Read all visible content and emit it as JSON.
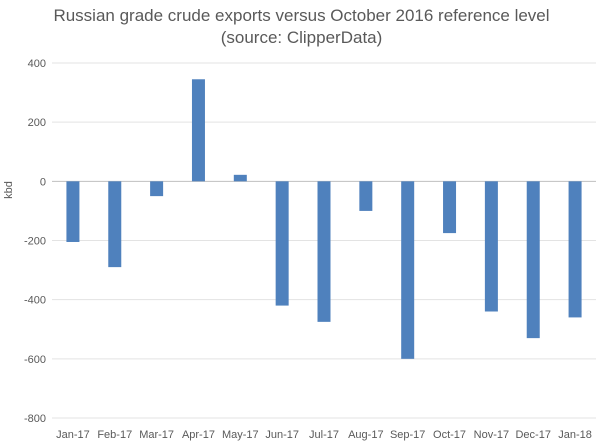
{
  "chart_data": {
    "type": "bar",
    "title": "Russian grade crude exports versus October 2016 reference level",
    "subtitle": "(source: ClipperData)",
    "xlabel": "",
    "ylabel": "kbd",
    "categories": [
      "Jan-17",
      "Feb-17",
      "Mar-17",
      "Apr-17",
      "May-17",
      "Jun-17",
      "Jul-17",
      "Aug-17",
      "Sep-17",
      "Oct-17",
      "Nov-17",
      "Dec-17",
      "Jan-18"
    ],
    "values": [
      -205,
      -290,
      -50,
      345,
      22,
      -420,
      -475,
      -100,
      -600,
      -175,
      -440,
      -530,
      -460
    ],
    "ylim": [
      -800,
      400
    ],
    "yticks": [
      400,
      200,
      0,
      -200,
      -400,
      -600,
      -800
    ],
    "grid": true,
    "legend": "none",
    "bar_color": "#4f81bd"
  }
}
